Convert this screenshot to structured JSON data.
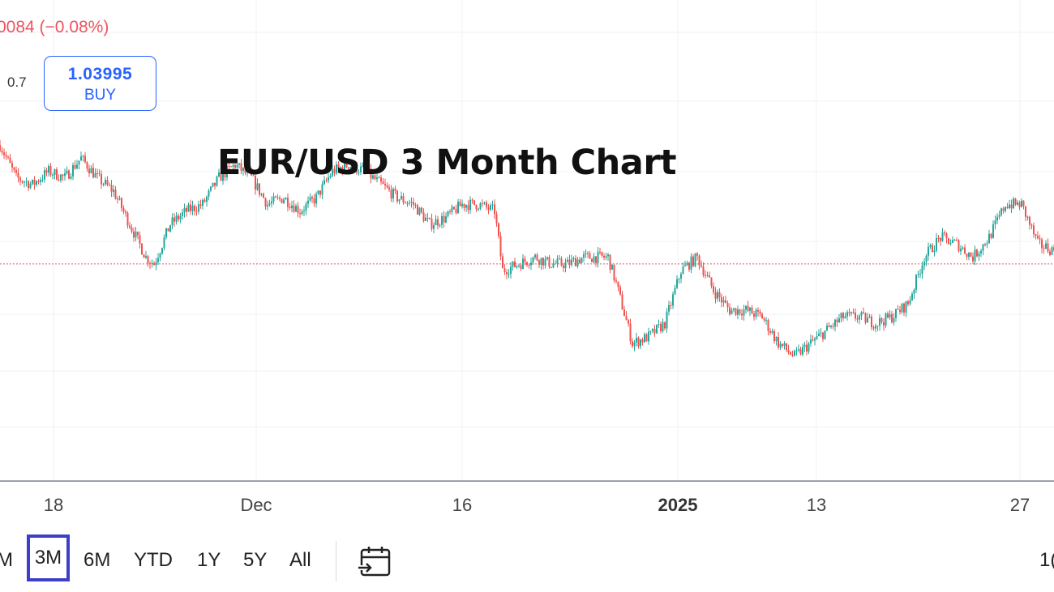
{
  "header": {
    "change_text": "0084 (−0.08%)",
    "side_value": "0.7",
    "buy_price": "1.03995",
    "buy_label": "BUY"
  },
  "chart_data": {
    "type": "candlestick",
    "title": "EUR/USD 3 Month Chart",
    "x_tick_labels": [
      "18",
      "Dec",
      "16",
      "2025",
      "13",
      "27"
    ],
    "x_tick_bold": [
      false,
      false,
      false,
      true,
      false,
      false
    ],
    "y_range_approx": [
      1.015,
      1.075
    ],
    "current_price_line": 1.04,
    "close_path": [
      [
        0,
        1.058
      ],
      [
        2,
        1.053
      ],
      [
        4,
        1.052
      ],
      [
        6,
        1.054
      ],
      [
        8,
        1.053
      ],
      [
        10,
        1.056
      ],
      [
        12,
        1.053
      ],
      [
        14,
        1.051
      ],
      [
        16,
        1.046
      ],
      [
        18,
        1.041
      ],
      [
        19,
        1.04
      ],
      [
        21,
        1.046
      ],
      [
        23,
        1.048
      ],
      [
        25,
        1.049
      ],
      [
        27,
        1.053
      ],
      [
        29,
        1.055
      ],
      [
        31,
        1.053
      ],
      [
        33,
        1.049
      ],
      [
        35,
        1.05
      ],
      [
        37,
        1.048
      ],
      [
        39,
        1.05
      ],
      [
        41,
        1.054
      ],
      [
        43,
        1.055
      ],
      [
        45,
        1.054
      ],
      [
        47,
        1.052
      ],
      [
        49,
        1.05
      ],
      [
        51,
        1.049
      ],
      [
        53,
        1.046
      ],
      [
        55,
        1.047
      ],
      [
        57,
        1.049
      ],
      [
        59,
        1.049
      ],
      [
        61,
        1.048
      ],
      [
        62,
        1.039
      ],
      [
        64,
        1.04
      ],
      [
        66,
        1.041
      ],
      [
        68,
        1.04
      ],
      [
        70,
        1.04
      ],
      [
        72,
        1.041
      ],
      [
        73,
        1.041
      ],
      [
        75,
        1.041
      ],
      [
        76,
        1.037
      ],
      [
        78,
        1.028
      ],
      [
        80,
        1.029
      ],
      [
        82,
        1.031
      ],
      [
        84,
        1.039
      ],
      [
        86,
        1.041
      ],
      [
        88,
        1.036
      ],
      [
        90,
        1.033
      ],
      [
        92,
        1.033
      ],
      [
        94,
        1.032
      ],
      [
        96,
        1.028
      ],
      [
        98,
        1.026
      ],
      [
        100,
        1.028
      ],
      [
        102,
        1.03
      ],
      [
        104,
        1.032
      ],
      [
        106,
        1.032
      ],
      [
        108,
        1.031
      ],
      [
        110,
        1.032
      ],
      [
        112,
        1.034
      ],
      [
        114,
        1.041
      ],
      [
        116,
        1.044
      ],
      [
        118,
        1.043
      ],
      [
        120,
        1.041
      ],
      [
        122,
        1.044
      ],
      [
        124,
        1.049
      ],
      [
        126,
        1.049
      ],
      [
        128,
        1.043
      ],
      [
        130,
        1.042
      ]
    ]
  },
  "range_selector": {
    "buttons": [
      "M",
      "3M",
      "6M",
      "YTD",
      "1Y",
      "5Y",
      "All"
    ],
    "active": "3M",
    "right_cut": "1("
  },
  "colors": {
    "up": "#26a69a",
    "down": "#ef5350",
    "grid": "#eef1f6",
    "price_line": "#e7556d",
    "accent": "#2962ff",
    "active_range": "#3d3fc8"
  }
}
